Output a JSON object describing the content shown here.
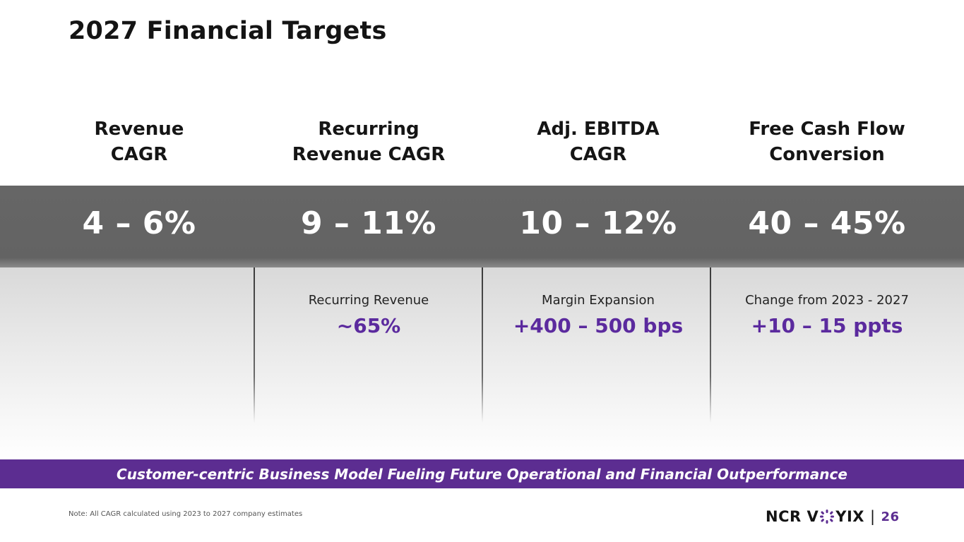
{
  "slide": {
    "title": "2027 Financial Targets",
    "columns": [
      {
        "header_line1": "Revenue",
        "header_line2": "CAGR",
        "target": "4 – 6%"
      },
      {
        "header_line1": "Recurring",
        "header_line2": "Revenue CAGR",
        "target": "9 – 11%",
        "sub_label": "Recurring Revenue",
        "sub_value": "~65%"
      },
      {
        "header_line1": "Adj. EBITDA",
        "header_line2": "CAGR",
        "target": "10 – 12%",
        "sub_label": "Margin Expansion",
        "sub_value": "+400 – 500 bps"
      },
      {
        "header_line1": "Free Cash Flow",
        "header_line2": "Conversion",
        "target": "40 – 45%",
        "sub_label": "Change from 2023 - 2027",
        "sub_value": "+10 – 15 ppts"
      }
    ],
    "banner": "Customer-centric Business Model Fueling Future Operational and Financial Outperformance",
    "footnote": "Note: All CAGR calculated using 2023 to 2027 company estimates"
  },
  "footer": {
    "logo_left": "NCR V",
    "logo_right": "YIX",
    "separator": "|",
    "page_number": "26"
  },
  "colors": {
    "accent_purple": "#5c2d91",
    "band_gray": "#666666"
  },
  "icons": {
    "logo_mark": "voyix-flower-icon"
  }
}
